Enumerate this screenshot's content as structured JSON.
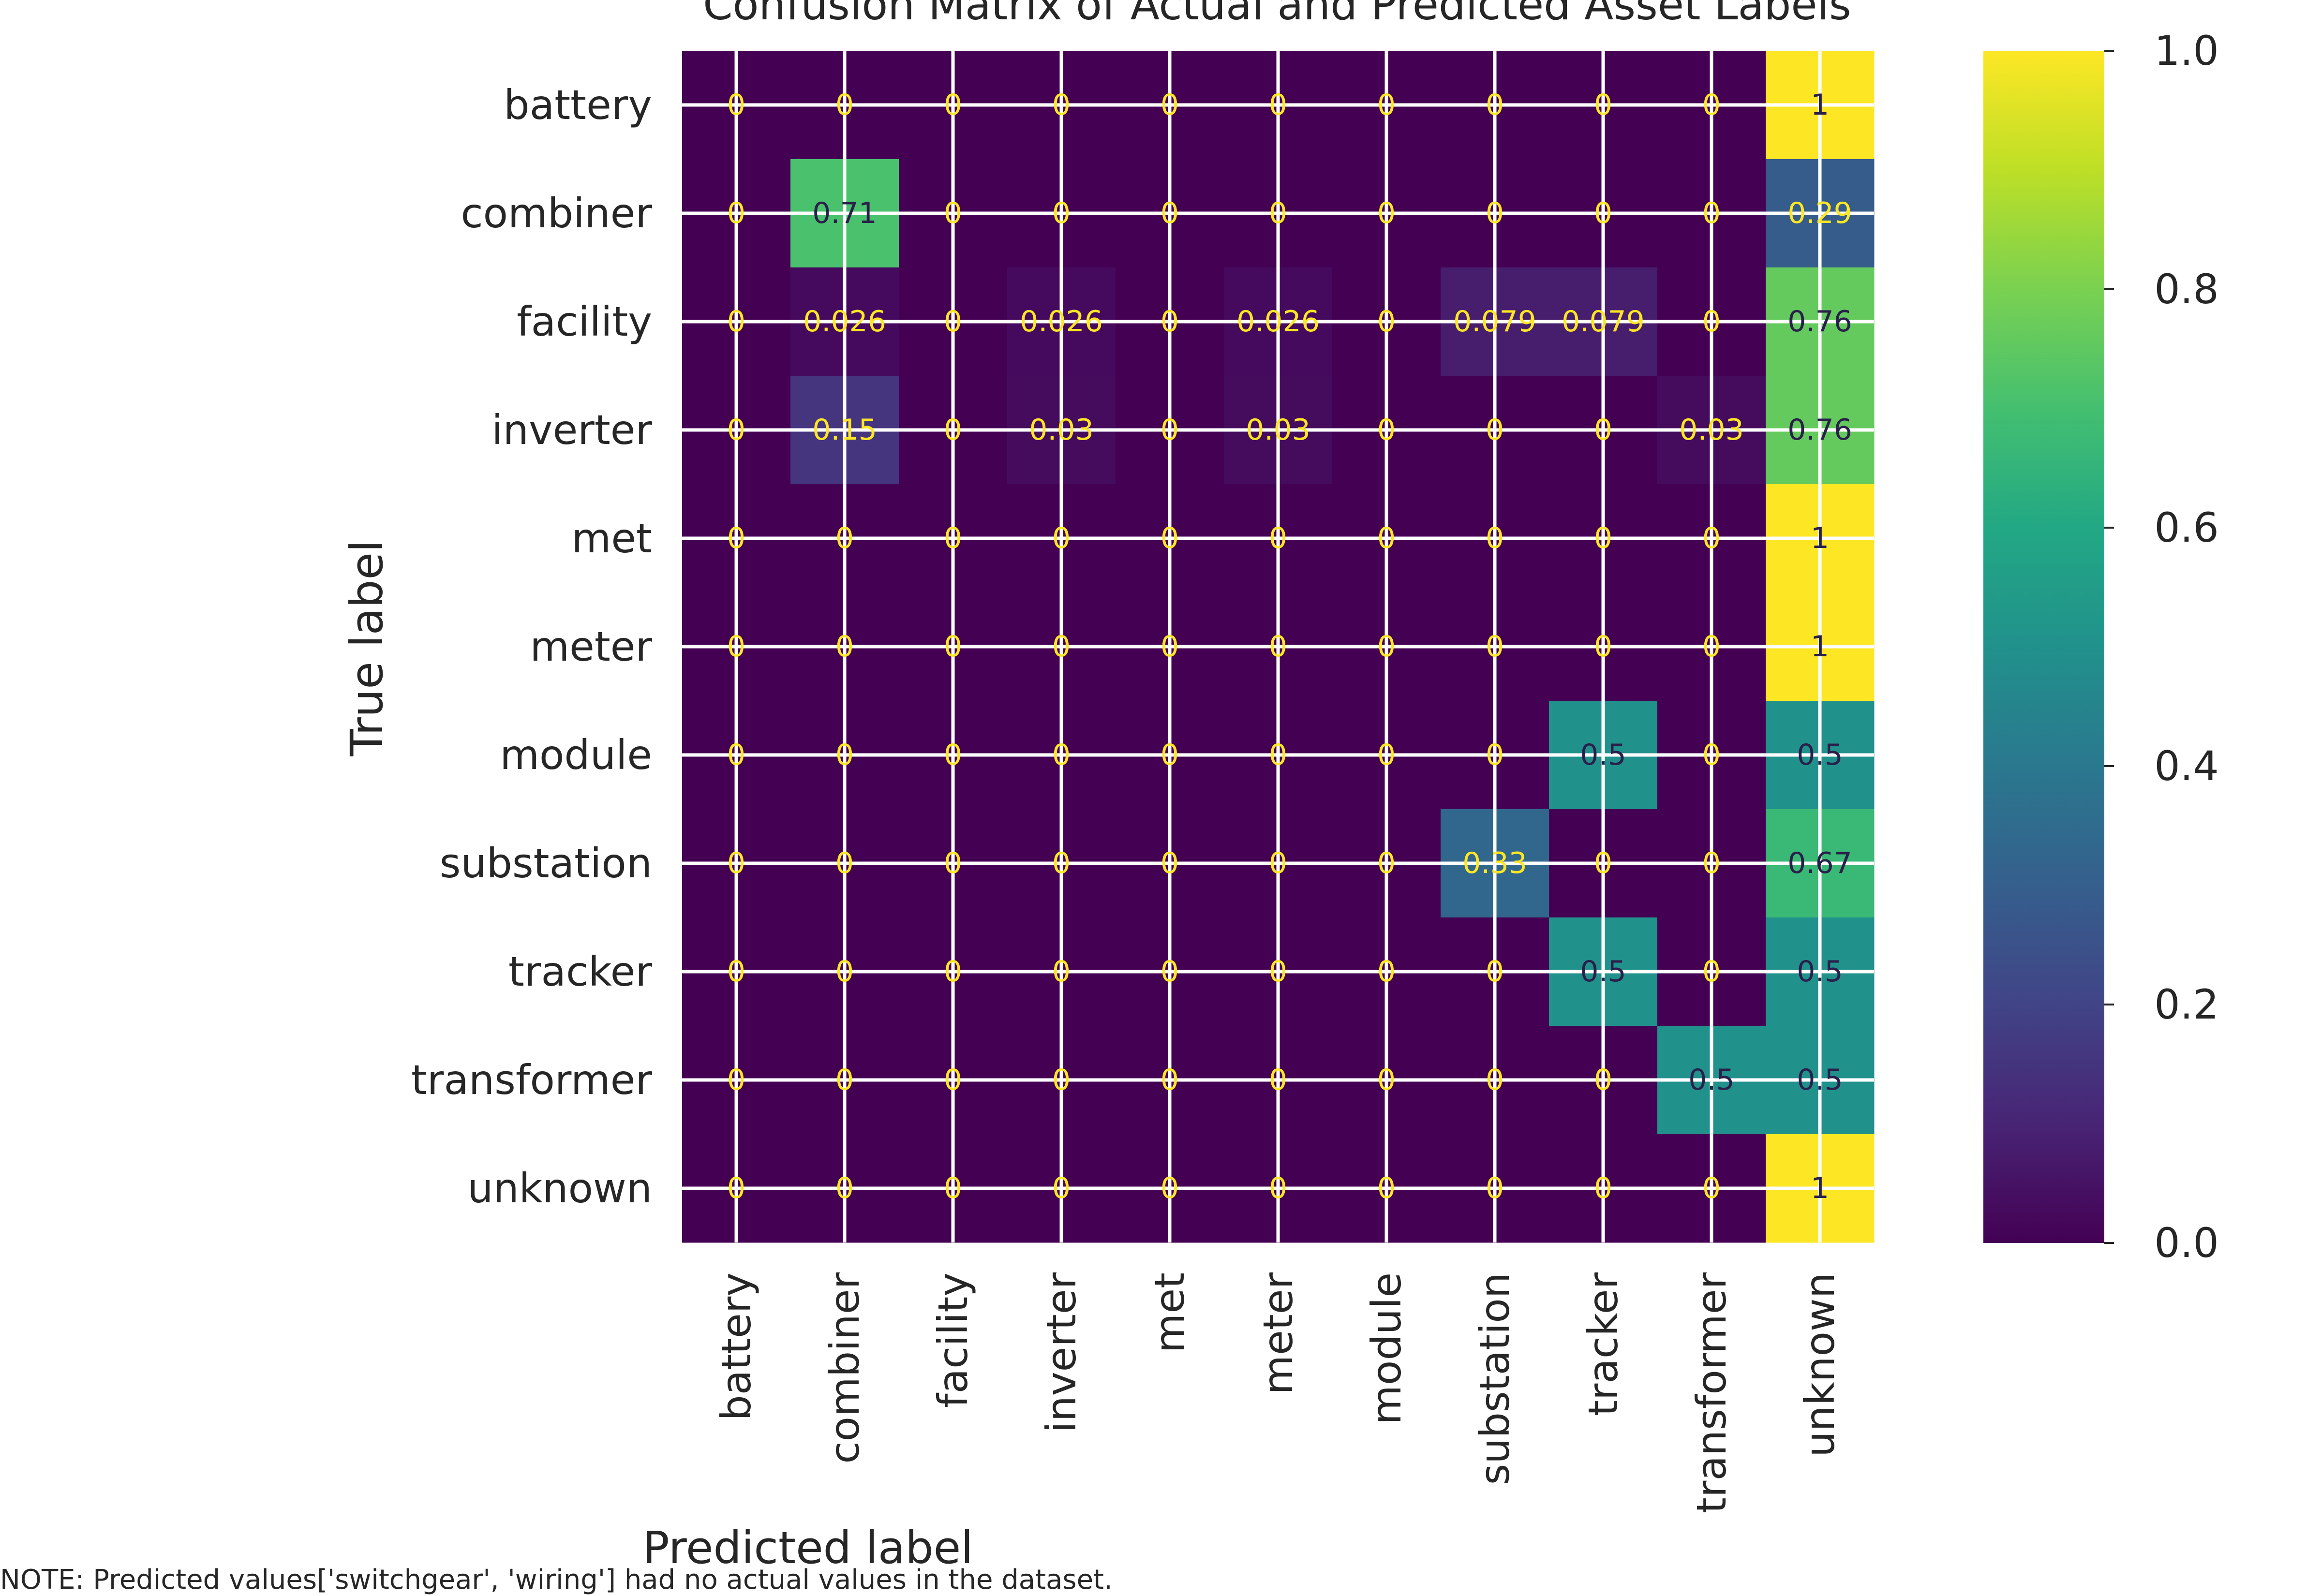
{
  "chart_data": {
    "type": "heatmap",
    "title": "Confusion Matrix of Actual and Predicted Asset Labels",
    "xlabel": "Predicted label",
    "ylabel": "True label",
    "x_categories": [
      "battery",
      "combiner",
      "facility",
      "inverter",
      "met",
      "meter",
      "module",
      "substation",
      "tracker",
      "transformer",
      "unknown"
    ],
    "y_categories": [
      "battery",
      "combiner",
      "facility",
      "inverter",
      "met",
      "meter",
      "module",
      "substation",
      "tracker",
      "transformer",
      "unknown"
    ],
    "values": [
      [
        0,
        0,
        0,
        0,
        0,
        0,
        0,
        0,
        0,
        0,
        1
      ],
      [
        0,
        0.71,
        0,
        0,
        0,
        0,
        0,
        0,
        0,
        0,
        0.29
      ],
      [
        0,
        0.026,
        0,
        0.026,
        0,
        0.026,
        0,
        0.079,
        0.079,
        0,
        0.76
      ],
      [
        0,
        0.15,
        0,
        0.03,
        0,
        0.03,
        0,
        0,
        0,
        0.03,
        0.76
      ],
      [
        0,
        0,
        0,
        0,
        0,
        0,
        0,
        0,
        0,
        0,
        1
      ],
      [
        0,
        0,
        0,
        0,
        0,
        0,
        0,
        0,
        0,
        0,
        1
      ],
      [
        0,
        0,
        0,
        0,
        0,
        0,
        0,
        0,
        0.5,
        0,
        0.5
      ],
      [
        0,
        0,
        0,
        0,
        0,
        0,
        0,
        0.33,
        0,
        0,
        0.67
      ],
      [
        0,
        0,
        0,
        0,
        0,
        0,
        0,
        0,
        0.5,
        0,
        0.5
      ],
      [
        0,
        0,
        0,
        0,
        0,
        0,
        0,
        0,
        0,
        0.5,
        0.5
      ],
      [
        0,
        0,
        0,
        0,
        0,
        0,
        0,
        0,
        0,
        0,
        1
      ]
    ],
    "cell_labels": [
      [
        "0",
        "0",
        "0",
        "0",
        "0",
        "0",
        "0",
        "0",
        "0",
        "0",
        "1"
      ],
      [
        "0",
        "0.71",
        "0",
        "0",
        "0",
        "0",
        "0",
        "0",
        "0",
        "0",
        "0.29"
      ],
      [
        "0",
        "0.026",
        "0",
        "0.026",
        "0",
        "0.026",
        "0",
        "0.079",
        "0.079",
        "0",
        "0.76"
      ],
      [
        "0",
        "0.15",
        "0",
        "0.03",
        "0",
        "0.03",
        "0",
        "0",
        "0",
        "0.03",
        "0.76"
      ],
      [
        "0",
        "0",
        "0",
        "0",
        "0",
        "0",
        "0",
        "0",
        "0",
        "0",
        "1"
      ],
      [
        "0",
        "0",
        "0",
        "0",
        "0",
        "0",
        "0",
        "0",
        "0",
        "0",
        "1"
      ],
      [
        "0",
        "0",
        "0",
        "0",
        "0",
        "0",
        "0",
        "0",
        "0.5",
        "0",
        "0.5"
      ],
      [
        "0",
        "0",
        "0",
        "0",
        "0",
        "0",
        "0",
        "0.33",
        "0",
        "0",
        "0.67"
      ],
      [
        "0",
        "0",
        "0",
        "0",
        "0",
        "0",
        "0",
        "0",
        "0.5",
        "0",
        "0.5"
      ],
      [
        "0",
        "0",
        "0",
        "0",
        "0",
        "0",
        "0",
        "0",
        "0",
        "0.5",
        "0.5"
      ],
      [
        "0",
        "0",
        "0",
        "0",
        "0",
        "0",
        "0",
        "0",
        "0",
        "0",
        "1"
      ]
    ],
    "colorbar": {
      "colormap": "viridis",
      "range": [
        0,
        1
      ],
      "ticks": [
        0.0,
        0.2,
        0.4,
        0.6,
        0.8,
        1.0
      ],
      "tick_labels": [
        "0.0",
        "0.2",
        "0.4",
        "0.6",
        "0.8",
        "1.0"
      ]
    },
    "grid": true,
    "text_color_light": "#fde725",
    "text_color_dark": "#2a1f4a"
  },
  "footnote": "NOTE: Predicted values['switchgear', 'wiring'] had no actual values in the dataset."
}
